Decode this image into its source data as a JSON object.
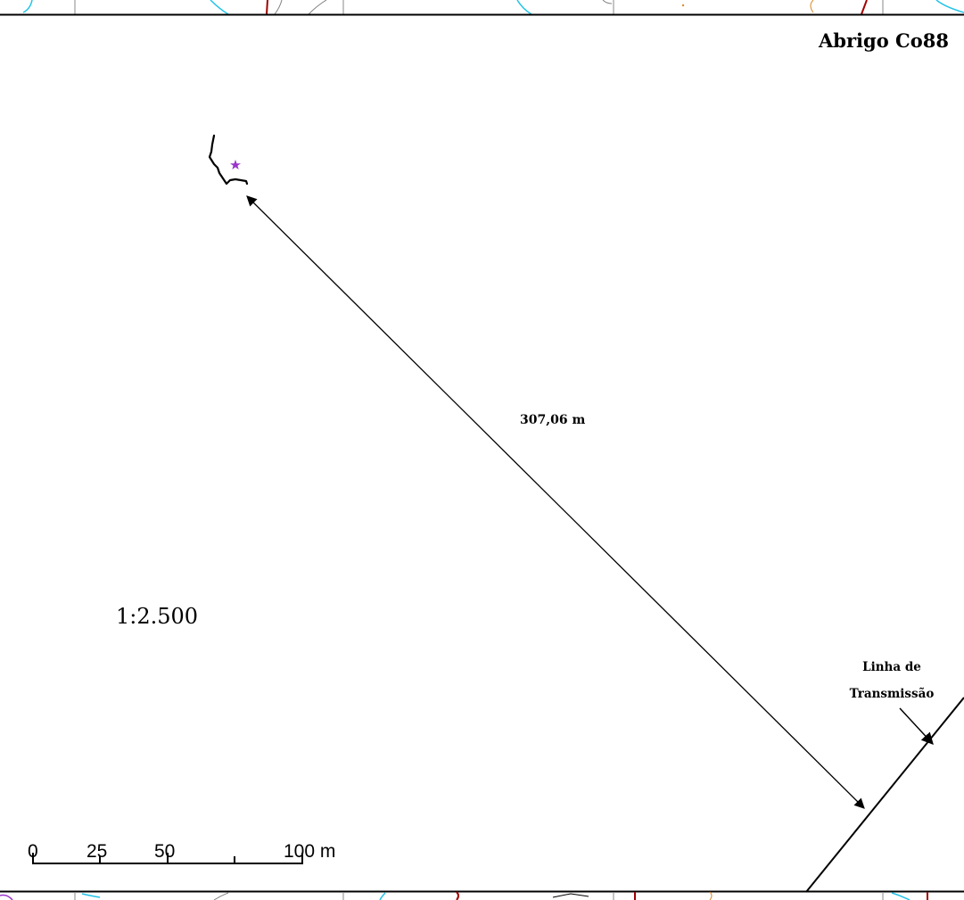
{
  "title": "Abrigo Co88",
  "measurement": {
    "distance_label": "307,06 m"
  },
  "transmission_line": {
    "label_line1": "Linha de",
    "label_line2": "Transmissão"
  },
  "scale": {
    "ratio": "1:2.500",
    "ticks": [
      "0",
      "25",
      "50",
      "100 m"
    ]
  },
  "site_marker": {
    "icon": "star-icon",
    "color": "#9933cc"
  },
  "colors": {
    "frame": "#000000",
    "contour_cyan": "#22c3e8",
    "contour_gray": "#808080",
    "boundary_red": "#a00000",
    "stream_orange": "#d98a2c",
    "marker_purple": "#9933cc"
  }
}
